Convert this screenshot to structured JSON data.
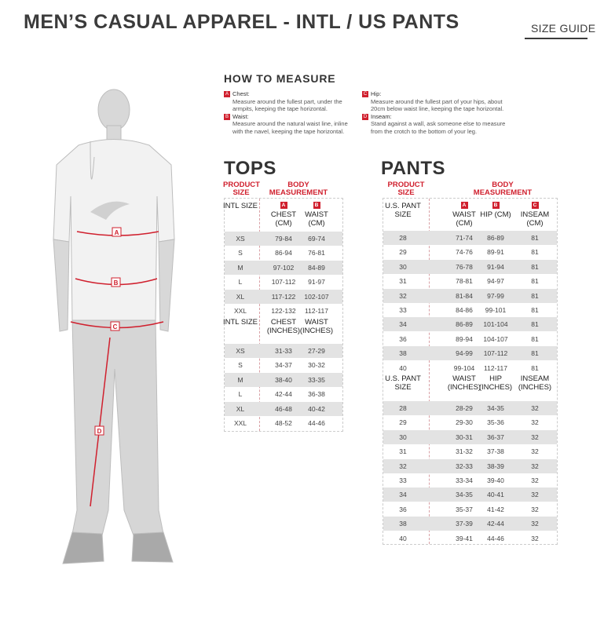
{
  "header": {
    "title": "MEN’S CASUAL APPAREL - INTL / US PANTS",
    "size_guide": "SIZE GUIDE"
  },
  "how_to_measure": {
    "title": "HOW TO MEASURE",
    "items": [
      {
        "key": "A",
        "label": "Chest:",
        "text": "Measure around the fullest part, under the armpits, keeping the tape horizontal."
      },
      {
        "key": "B",
        "label": "Waist:",
        "text": "Measure around the natural waist line, inline with the navel, keeping the tape horizontal."
      },
      {
        "key": "C",
        "label": "Hip:",
        "text": "Measure around the fullest part of your hips, about 20cm below waist line, keeping the tape horizontal."
      },
      {
        "key": "D",
        "label": "Inseam:",
        "text": "Stand against a wall, ask someone else to measure from the crotch to the bottom of your leg."
      }
    ]
  },
  "figure": {
    "markers": [
      "A",
      "B",
      "C",
      "D"
    ]
  },
  "colors": {
    "accent": "#d0202e",
    "stripe": "#e3e3e3"
  },
  "tops": {
    "title": "TOPS",
    "product_size": "PRODUCT SIZE",
    "body_measurement": "BODY MEASUREMENT",
    "badges": [
      "A",
      "B"
    ],
    "cm_headers": [
      "INTL SIZE",
      "CHEST (CM)",
      "WAIST (CM)"
    ],
    "cm_rows": [
      [
        "XS",
        "79-84",
        "69-74"
      ],
      [
        "S",
        "86-94",
        "76-81"
      ],
      [
        "M",
        "97-102",
        "84-89"
      ],
      [
        "L",
        "107-112",
        "91-97"
      ],
      [
        "XL",
        "117-122",
        "102-107"
      ],
      [
        "XXL",
        "122-132",
        "112-117"
      ]
    ],
    "in_headers": [
      "INTL SIZE",
      "CHEST (INCHES)",
      "WAIST (INCHES)"
    ],
    "in_rows": [
      [
        "XS",
        "31-33",
        "27-29"
      ],
      [
        "S",
        "34-37",
        "30-32"
      ],
      [
        "M",
        "38-40",
        "33-35"
      ],
      [
        "L",
        "42-44",
        "36-38"
      ],
      [
        "XL",
        "46-48",
        "40-42"
      ],
      [
        "XXL",
        "48-52",
        "44-46"
      ]
    ]
  },
  "pants": {
    "title": "PANTS",
    "product_size": "PRODUCT SIZE",
    "body_measurement": "BODY MEASUREMENT",
    "badges": [
      "A",
      "B",
      "C"
    ],
    "cm_headers": [
      "U.S. PANT SIZE",
      "WAIST (CM)",
      "HIP (CM)",
      "INSEAM (CM)"
    ],
    "cm_rows": [
      [
        "28",
        "71-74",
        "86-89",
        "81"
      ],
      [
        "29",
        "74-76",
        "89-91",
        "81"
      ],
      [
        "30",
        "76-78",
        "91-94",
        "81"
      ],
      [
        "31",
        "78-81",
        "94-97",
        "81"
      ],
      [
        "32",
        "81-84",
        "97-99",
        "81"
      ],
      [
        "33",
        "84-86",
        "99-101",
        "81"
      ],
      [
        "34",
        "86-89",
        "101-104",
        "81"
      ],
      [
        "36",
        "89-94",
        "104-107",
        "81"
      ],
      [
        "38",
        "94-99",
        "107-112",
        "81"
      ],
      [
        "40",
        "99-104",
        "112-117",
        "81"
      ]
    ],
    "in_headers": [
      "U.S. PANT SIZE",
      "WAIST (INCHES)",
      "HIP (INCHES)",
      "INSEAM (INCHES)"
    ],
    "in_rows": [
      [
        "28",
        "28-29",
        "34-35",
        "32"
      ],
      [
        "29",
        "29-30",
        "35-36",
        "32"
      ],
      [
        "30",
        "30-31",
        "36-37",
        "32"
      ],
      [
        "31",
        "31-32",
        "37-38",
        "32"
      ],
      [
        "32",
        "32-33",
        "38-39",
        "32"
      ],
      [
        "33",
        "33-34",
        "39-40",
        "32"
      ],
      [
        "34",
        "34-35",
        "40-41",
        "32"
      ],
      [
        "36",
        "35-37",
        "41-42",
        "32"
      ],
      [
        "38",
        "37-39",
        "42-44",
        "32"
      ],
      [
        "40",
        "39-41",
        "44-46",
        "32"
      ]
    ]
  }
}
